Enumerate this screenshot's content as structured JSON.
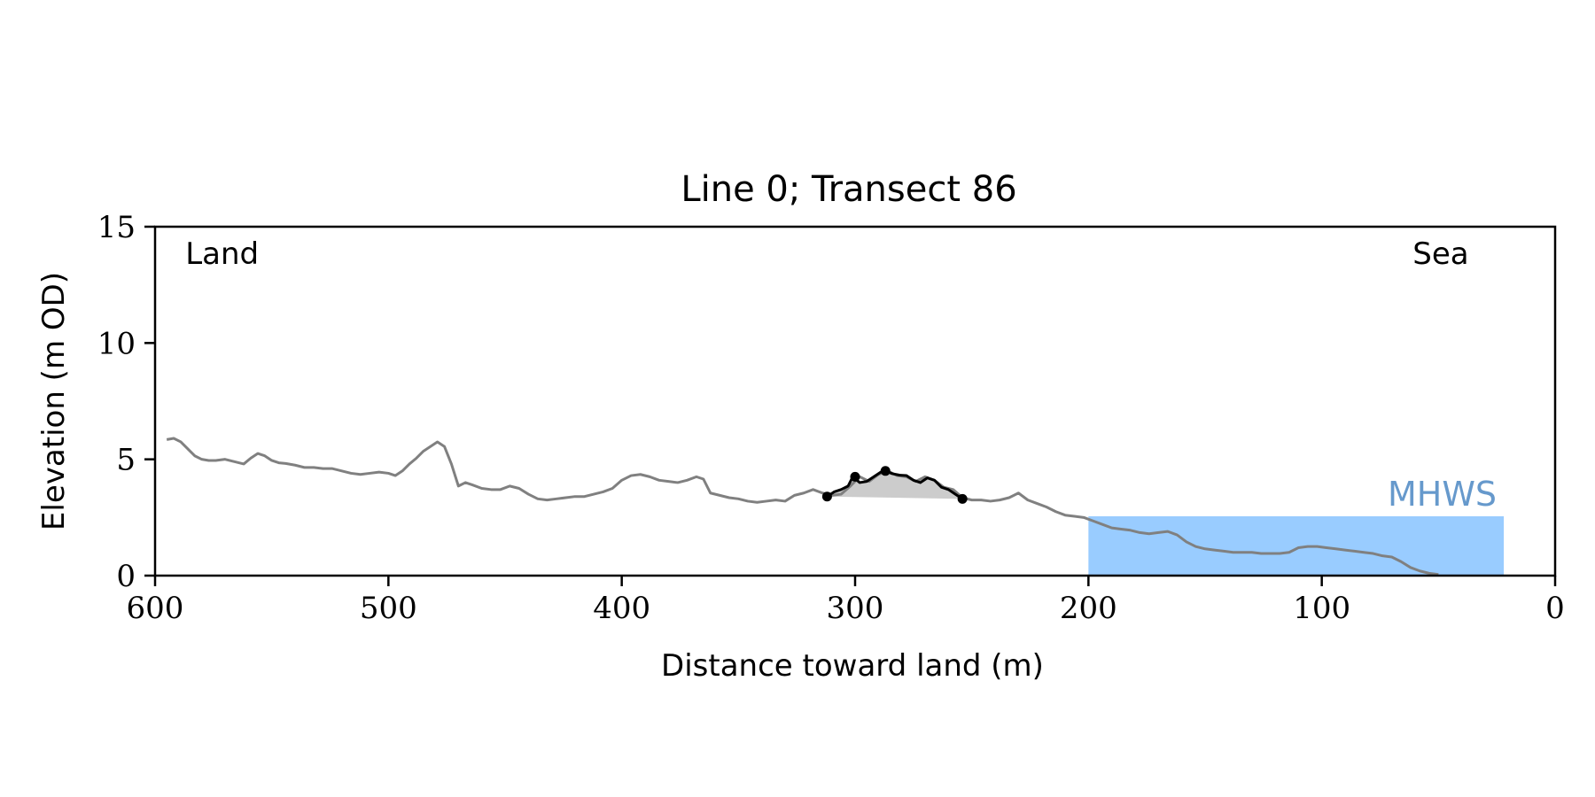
{
  "chart_data": {
    "type": "line",
    "title": "Line 0; Transect 86",
    "xlabel": "Distance toward land (m)",
    "ylabel": "Elevation (m OD)",
    "xlim": [
      600,
      0
    ],
    "ylim": [
      0,
      15
    ],
    "xticks": [
      600,
      500,
      400,
      300,
      200,
      100,
      0
    ],
    "yticks": [
      0,
      5,
      10,
      15
    ],
    "grid": false,
    "annotations": [
      {
        "text": "Land",
        "x": 587,
        "y": 13.4
      },
      {
        "text": "Sea",
        "x": 49,
        "y": 13.4
      }
    ],
    "mhws": {
      "label": "MHWS",
      "level": 2.55,
      "x_start": 200,
      "x_end": 22,
      "color": "#99ccff",
      "label_color": "#6699cc"
    },
    "profile": {
      "color": "#808080",
      "x": [
        595,
        592,
        589,
        586,
        583,
        580,
        577,
        574,
        570,
        566,
        562,
        559,
        556,
        553,
        550,
        547,
        544,
        540,
        536,
        532,
        528,
        524,
        520,
        516,
        512,
        508,
        504,
        500,
        497,
        494,
        491,
        488,
        485,
        482,
        479,
        476,
        473,
        470,
        467,
        464,
        460,
        456,
        452,
        448,
        444,
        440,
        436,
        432,
        428,
        424,
        420,
        416,
        412,
        408,
        404,
        400,
        396,
        392,
        388,
        384,
        380,
        376,
        372,
        368,
        365,
        362,
        358,
        354,
        350,
        346,
        342,
        338,
        334,
        330,
        326,
        322,
        318,
        314,
        310,
        306,
        302,
        298,
        294,
        290,
        286,
        282,
        278,
        274,
        270,
        266,
        262,
        258,
        254,
        250,
        246,
        242,
        238,
        234,
        230,
        226,
        222,
        218,
        214,
        210,
        206,
        202,
        198,
        194,
        190,
        186,
        182,
        178,
        174,
        170,
        166,
        162,
        158,
        154,
        150,
        146,
        142,
        138,
        134,
        130,
        126,
        122,
        118,
        114,
        110,
        106,
        102,
        98,
        94,
        90,
        86,
        82,
        78,
        74,
        70,
        66,
        62,
        58,
        54,
        50
      ],
      "y": [
        5.85,
        5.9,
        5.75,
        5.45,
        5.15,
        5.0,
        4.95,
        4.95,
        5.0,
        4.9,
        4.8,
        5.05,
        5.25,
        5.15,
        4.95,
        4.85,
        4.82,
        4.75,
        4.65,
        4.65,
        4.6,
        4.6,
        4.5,
        4.4,
        4.35,
        4.4,
        4.45,
        4.4,
        4.3,
        4.5,
        4.8,
        5.05,
        5.35,
        5.55,
        5.75,
        5.55,
        4.8,
        3.85,
        4.0,
        3.9,
        3.75,
        3.7,
        3.7,
        3.85,
        3.75,
        3.5,
        3.3,
        3.25,
        3.3,
        3.35,
        3.4,
        3.4,
        3.5,
        3.6,
        3.75,
        4.1,
        4.3,
        4.35,
        4.25,
        4.1,
        4.05,
        4.0,
        4.1,
        4.25,
        4.15,
        3.55,
        3.45,
        3.35,
        3.3,
        3.2,
        3.15,
        3.2,
        3.25,
        3.2,
        3.45,
        3.55,
        3.7,
        3.55,
        3.45,
        3.5,
        3.85,
        4.25,
        4.05,
        4.35,
        4.5,
        4.3,
        4.25,
        4.05,
        4.25,
        4.1,
        3.8,
        3.7,
        3.35,
        3.25,
        3.25,
        3.2,
        3.25,
        3.35,
        3.55,
        3.25,
        3.1,
        2.95,
        2.75,
        2.6,
        2.55,
        2.5,
        2.35,
        2.2,
        2.05,
        2.0,
        1.95,
        1.85,
        1.8,
        1.85,
        1.9,
        1.75,
        1.45,
        1.25,
        1.15,
        1.1,
        1.05,
        1.0,
        1.0,
        1.0,
        0.95,
        0.95,
        0.95,
        1.0,
        1.2,
        1.25,
        1.25,
        1.2,
        1.15,
        1.1,
        1.05,
        1.0,
        0.95,
        0.85,
        0.8,
        0.6,
        0.35,
        0.2,
        0.1,
        0.05
      ]
    },
    "dune": {
      "color": "#000000",
      "fill": "#cccccc",
      "x": [
        312,
        309,
        306,
        303,
        301,
        298,
        295,
        292,
        289,
        287,
        284,
        281,
        278,
        275,
        272,
        269,
        266,
        263,
        260,
        257,
        254
      ],
      "y": [
        3.4,
        3.6,
        3.7,
        3.85,
        4.25,
        4.0,
        4.05,
        4.25,
        4.45,
        4.5,
        4.38,
        4.32,
        4.3,
        4.1,
        4.0,
        4.2,
        4.1,
        3.8,
        3.7,
        3.5,
        3.3
      ],
      "markers": [
        {
          "x": 312,
          "y": 3.4
        },
        {
          "x": 300,
          "y": 4.25
        },
        {
          "x": 287,
          "y": 4.5
        },
        {
          "x": 254,
          "y": 3.3
        }
      ]
    }
  }
}
